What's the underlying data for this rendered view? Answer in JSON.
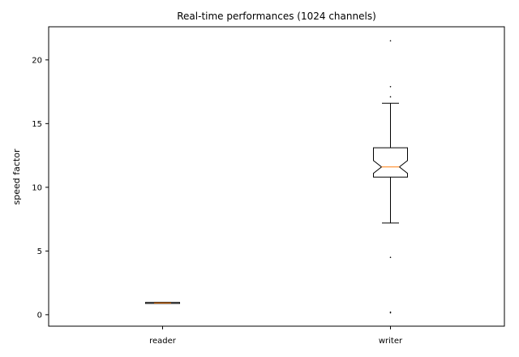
{
  "chart_data": {
    "type": "box",
    "title": "Real-time performances (1024 channels)",
    "xlabel": "",
    "ylabel": "speed factor",
    "ylim": [
      -0.9,
      22.6
    ],
    "yticks": [
      0,
      5,
      10,
      15,
      20
    ],
    "ytick_labels": [
      "0",
      "5",
      "10",
      "15",
      "20"
    ],
    "notched": true,
    "grid": false,
    "categories": [
      "reader",
      "writer"
    ],
    "series": [
      {
        "category": "reader",
        "whisker_low": 0.88,
        "q1": 0.88,
        "median": 0.92,
        "q3": 0.96,
        "whisker_high": 0.96,
        "notch_low": 0.9,
        "notch_high": 0.94,
        "outliers": []
      },
      {
        "category": "writer",
        "whisker_low": 7.2,
        "q1": 10.8,
        "median": 11.6,
        "q3": 13.1,
        "whisker_high": 16.6,
        "notch_low": 11.1,
        "notch_high": 12.1,
        "outliers": [
          21.5,
          17.9,
          17.1,
          4.5,
          0.2,
          0.15
        ]
      }
    ],
    "colors": {
      "box": "#000000",
      "median": "#ff7f0e",
      "background": "#ffffff"
    }
  }
}
